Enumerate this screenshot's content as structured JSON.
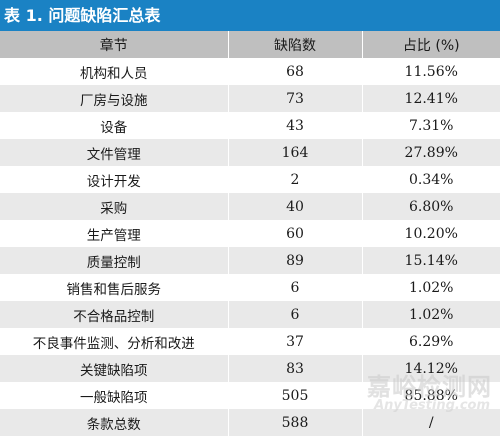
{
  "title": "表 1. 问题缺陷汇总表",
  "headers": [
    "章节",
    "缺陷数",
    "占比 (%)"
  ],
  "rows": [
    [
      "机构和人员",
      "68",
      "11.56%"
    ],
    [
      "厂房与设施",
      "73",
      "12.41%"
    ],
    [
      "设备",
      "43",
      "7.31%"
    ],
    [
      "文件管理",
      "164",
      "27.89%"
    ],
    [
      "设计开发",
      "2",
      "0.34%"
    ],
    [
      "采购",
      "40",
      "6.80%"
    ],
    [
      "生产管理",
      "60",
      "10.20%"
    ],
    [
      "质量控制",
      "89",
      "15.14%"
    ],
    [
      "销售和售后服务",
      "6",
      "1.02%"
    ],
    [
      "不合格品控制",
      "6",
      "1.02%"
    ],
    [
      "不良事件监测、分析和改进",
      "37",
      "6.29%"
    ],
    [
      "关键缺陷项",
      "83",
      "14.12%"
    ],
    [
      "一般缺陷项",
      "505",
      "85.88%"
    ],
    [
      "条款总数",
      "588",
      "/"
    ]
  ],
  "watermark": {
    "cn": "嘉峪检测网",
    "en": "AnyTesting.com"
  },
  "colors": {
    "title_bg": "#1a82c4",
    "header_bg": "#bfbfbf",
    "stripe": "#e9e9e9"
  }
}
